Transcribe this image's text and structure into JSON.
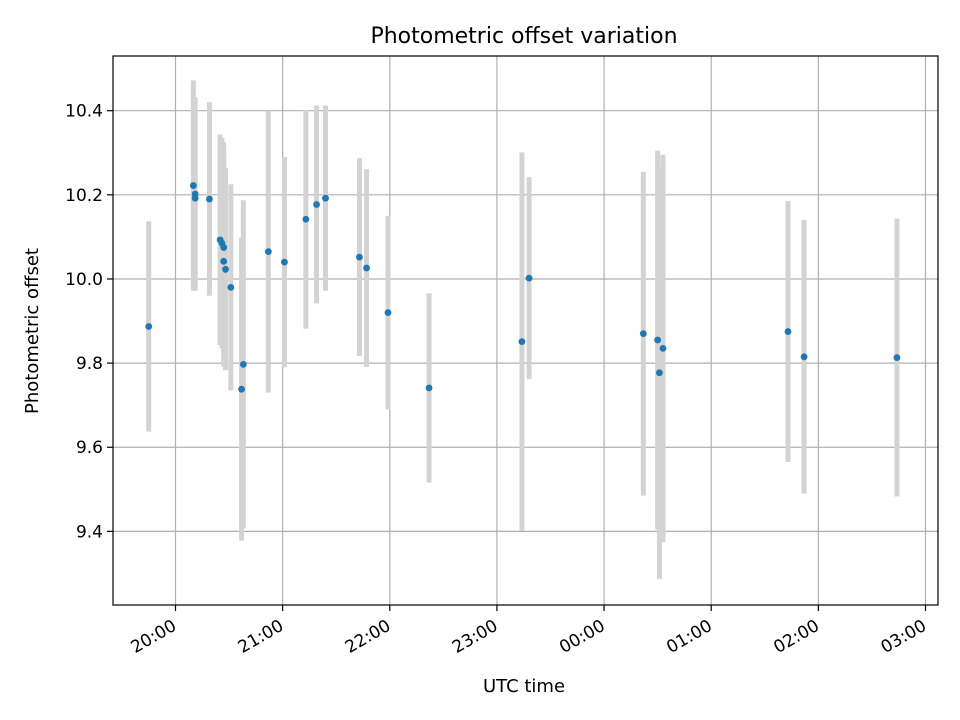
{
  "chart_data": {
    "type": "scatter",
    "title": "Photometric offset variation",
    "xlabel": "UTC time",
    "ylabel": "Photometric offset",
    "x_axis_kind": "time",
    "xlim": [
      "2000-01-01T19:25",
      "2000-01-02T03:07"
    ],
    "ylim": [
      9.225,
      10.53
    ],
    "x_ticks": [
      {
        "time": "2000-01-01T20:00",
        "label": "20:00"
      },
      {
        "time": "2000-01-01T21:00",
        "label": "21:00"
      },
      {
        "time": "2000-01-01T22:00",
        "label": "22:00"
      },
      {
        "time": "2000-01-01T23:00",
        "label": "23:00"
      },
      {
        "time": "2000-01-02T00:00",
        "label": "00:00"
      },
      {
        "time": "2000-01-02T01:00",
        "label": "01:00"
      },
      {
        "time": "2000-01-02T02:00",
        "label": "02:00"
      },
      {
        "time": "2000-01-02T03:00",
        "label": "03:00"
      }
    ],
    "y_ticks": [
      {
        "value": 9.4,
        "label": "9.4"
      },
      {
        "value": 9.6,
        "label": "9.6"
      },
      {
        "value": 9.8,
        "label": "9.8"
      },
      {
        "value": 10.0,
        "label": "10.0"
      },
      {
        "value": 10.2,
        "label": "10.2"
      },
      {
        "value": 10.4,
        "label": "10.4"
      }
    ],
    "grid": true,
    "marker_color": "#1f77b4",
    "errorbar_color": "#d3d3d3",
    "points": [
      {
        "x": "2000-01-01T19:45",
        "y": 9.887,
        "err": 0.25
      },
      {
        "x": "2000-01-01T20:10",
        "y": 10.222,
        "err": 0.25
      },
      {
        "x": "2000-01-01T20:11",
        "y": 10.202,
        "err": 0.23
      },
      {
        "x": "2000-01-01T20:11",
        "y": 10.192,
        "err": 0.21
      },
      {
        "x": "2000-01-01T20:19",
        "y": 10.19,
        "err": 0.23
      },
      {
        "x": "2000-01-01T20:25",
        "y": 10.093,
        "err": 0.25
      },
      {
        "x": "2000-01-01T20:26",
        "y": 10.085,
        "err": 0.25
      },
      {
        "x": "2000-01-01T20:27",
        "y": 10.075,
        "err": 0.25
      },
      {
        "x": "2000-01-01T20:27",
        "y": 10.042,
        "err": 0.25
      },
      {
        "x": "2000-01-01T20:28",
        "y": 10.023,
        "err": 0.24
      },
      {
        "x": "2000-01-01T20:31",
        "y": 9.98,
        "err": 0.245
      },
      {
        "x": "2000-01-01T20:37",
        "y": 9.738,
        "err": 0.36
      },
      {
        "x": "2000-01-01T20:38",
        "y": 9.797,
        "err": 0.39
      },
      {
        "x": "2000-01-01T20:52",
        "y": 10.065,
        "err": 0.335
      },
      {
        "x": "2000-01-01T21:01",
        "y": 10.04,
        "err": 0.25
      },
      {
        "x": "2000-01-01T21:13",
        "y": 10.142,
        "err": 0.26
      },
      {
        "x": "2000-01-01T21:19",
        "y": 10.177,
        "err": 0.235
      },
      {
        "x": "2000-01-01T21:24",
        "y": 10.192,
        "err": 0.22
      },
      {
        "x": "2000-01-01T21:43",
        "y": 10.052,
        "err": 0.235
      },
      {
        "x": "2000-01-01T21:47",
        "y": 10.026,
        "err": 0.235
      },
      {
        "x": "2000-01-01T21:59",
        "y": 9.92,
        "err": 0.23
      },
      {
        "x": "2000-01-01T22:22",
        "y": 9.741,
        "err": 0.225
      },
      {
        "x": "2000-01-01T23:14",
        "y": 9.851,
        "err": 0.45
      },
      {
        "x": "2000-01-01T23:18",
        "y": 10.002,
        "err": 0.24
      },
      {
        "x": "2000-01-02T00:22",
        "y": 9.87,
        "err": 0.385
      },
      {
        "x": "2000-01-02T00:30",
        "y": 9.855,
        "err": 0.45
      },
      {
        "x": "2000-01-02T00:31",
        "y": 9.777,
        "err": 0.49
      },
      {
        "x": "2000-01-02T00:33",
        "y": 9.835,
        "err": 0.46
      },
      {
        "x": "2000-01-02T01:43",
        "y": 9.875,
        "err": 0.31
      },
      {
        "x": "2000-01-02T01:52",
        "y": 9.815,
        "err": 0.325
      },
      {
        "x": "2000-01-02T02:44",
        "y": 9.813,
        "err": 0.33
      }
    ]
  }
}
